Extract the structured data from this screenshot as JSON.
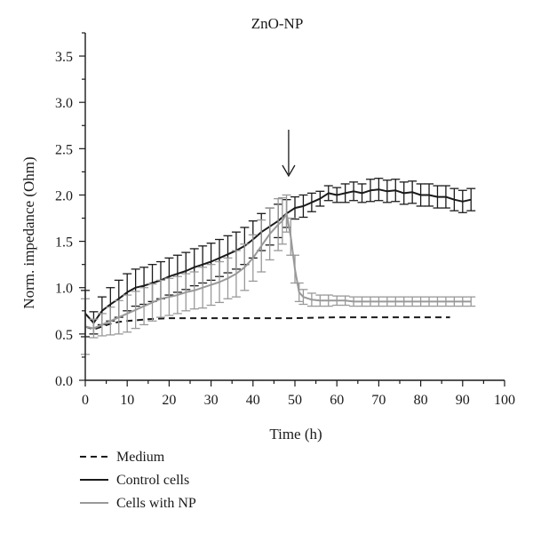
{
  "chart_data": {
    "type": "line",
    "title": "ZnO-NP",
    "xlabel": "Time (h)",
    "ylabel": "Norm. impedance (Ohm)",
    "xlim": [
      0,
      100
    ],
    "ylim": [
      0,
      3.75
    ],
    "xticks": [
      "0",
      "10",
      "20",
      "30",
      "40",
      "50",
      "60",
      "70",
      "80",
      "90",
      "100"
    ],
    "yticks": [
      "0.0",
      "0.5",
      "1.0",
      "1.5",
      "2.0",
      "2.5",
      "3.0",
      "3.5"
    ],
    "grid": false,
    "legend_position": "below",
    "annotation": {
      "type": "arrow",
      "x": 48.5,
      "label": ""
    },
    "series": [
      {
        "name": "Medium",
        "style": "dashed",
        "color": "#1a1a1a",
        "x": [
          0,
          2,
          4,
          6,
          8,
          10,
          15,
          20,
          30,
          40,
          50,
          60,
          70,
          80,
          87
        ],
        "y": [
          0.58,
          0.55,
          0.58,
          0.61,
          0.63,
          0.64,
          0.66,
          0.67,
          0.67,
          0.67,
          0.67,
          0.68,
          0.68,
          0.68,
          0.68
        ]
      },
      {
        "name": "Control cells",
        "style": "solid",
        "color": "#1a1a1a",
        "x": [
          0,
          2,
          4,
          6,
          8,
          10,
          12,
          14,
          16,
          18,
          20,
          22,
          24,
          26,
          28,
          30,
          32,
          34,
          36,
          38,
          40,
          42,
          44,
          46,
          48,
          50,
          52,
          54,
          56,
          58,
          60,
          62,
          64,
          66,
          68,
          70,
          72,
          74,
          76,
          78,
          80,
          82,
          84,
          86,
          88,
          90,
          92
        ],
        "y": [
          0.72,
          0.62,
          0.75,
          0.82,
          0.88,
          0.95,
          1.0,
          1.02,
          1.05,
          1.08,
          1.12,
          1.15,
          1.18,
          1.22,
          1.25,
          1.28,
          1.32,
          1.36,
          1.4,
          1.45,
          1.52,
          1.6,
          1.66,
          1.72,
          1.8,
          1.86,
          1.88,
          1.92,
          1.96,
          2.02,
          2.0,
          2.02,
          2.04,
          2.02,
          2.05,
          2.06,
          2.04,
          2.05,
          2.02,
          2.03,
          2.0,
          2.0,
          1.98,
          1.98,
          1.95,
          1.93,
          1.95
        ],
        "err": [
          0.25,
          0.12,
          0.15,
          0.18,
          0.2,
          0.2,
          0.2,
          0.2,
          0.2,
          0.2,
          0.2,
          0.2,
          0.2,
          0.2,
          0.2,
          0.2,
          0.2,
          0.2,
          0.2,
          0.2,
          0.2,
          0.2,
          0.2,
          0.18,
          0.15,
          0.12,
          0.12,
          0.1,
          0.08,
          0.08,
          0.08,
          0.1,
          0.1,
          0.1,
          0.12,
          0.12,
          0.12,
          0.12,
          0.12,
          0.12,
          0.12,
          0.12,
          0.12,
          0.12,
          0.12,
          0.12,
          0.12
        ]
      },
      {
        "name": "Cells with NP",
        "style": "solid",
        "color": "#999999",
        "x": [
          0,
          2,
          4,
          6,
          8,
          10,
          12,
          14,
          16,
          18,
          20,
          22,
          24,
          26,
          28,
          30,
          32,
          34,
          36,
          38,
          40,
          42,
          44,
          46,
          47,
          48,
          49,
          50,
          51,
          52,
          54,
          56,
          58,
          60,
          62,
          64,
          66,
          68,
          70,
          72,
          74,
          76,
          78,
          80,
          82,
          84,
          86,
          88,
          90,
          92
        ],
        "y": [
          0.58,
          0.56,
          0.6,
          0.64,
          0.68,
          0.72,
          0.76,
          0.8,
          0.84,
          0.88,
          0.9,
          0.92,
          0.95,
          0.97,
          1.0,
          1.03,
          1.06,
          1.1,
          1.15,
          1.22,
          1.32,
          1.45,
          1.58,
          1.68,
          1.72,
          1.8,
          1.55,
          1.2,
          0.95,
          0.9,
          0.87,
          0.86,
          0.86,
          0.86,
          0.86,
          0.85,
          0.85,
          0.85,
          0.85,
          0.85,
          0.85,
          0.85,
          0.85,
          0.85,
          0.85,
          0.85,
          0.85,
          0.85,
          0.85,
          0.85
        ],
        "err": [
          0.3,
          0.1,
          0.12,
          0.15,
          0.18,
          0.2,
          0.2,
          0.2,
          0.2,
          0.2,
          0.2,
          0.2,
          0.2,
          0.2,
          0.22,
          0.22,
          0.22,
          0.22,
          0.25,
          0.25,
          0.25,
          0.28,
          0.28,
          0.28,
          0.25,
          0.2,
          0.2,
          0.15,
          0.1,
          0.08,
          0.07,
          0.06,
          0.06,
          0.05,
          0.05,
          0.05,
          0.05,
          0.05,
          0.05,
          0.05,
          0.05,
          0.05,
          0.05,
          0.05,
          0.05,
          0.05,
          0.05,
          0.05,
          0.05,
          0.05
        ]
      }
    ]
  }
}
